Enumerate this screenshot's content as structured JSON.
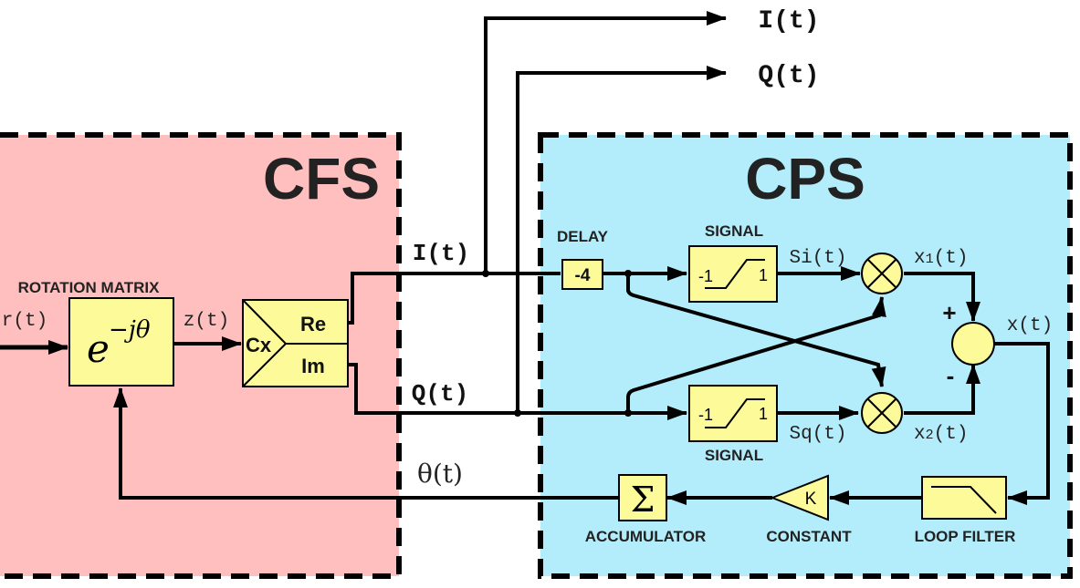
{
  "colors": {
    "cfs_fill": "#ffbfbf",
    "cps_fill": "#b3ecfa",
    "block_fill": "#fdfa9a",
    "line": "#000000"
  },
  "regions": {
    "cfs_title": "CFS",
    "cps_title": "CPS"
  },
  "outputs": {
    "i_label": "I(t)",
    "q_label": "Q(t)"
  },
  "signals": {
    "input": "r(t)",
    "z": "z(t)",
    "i_mid": "I(t)",
    "q_mid": "Q(t)",
    "si": "Si(t)",
    "sq": "Sq(t)",
    "x1_base": "x",
    "x1_sub": "1",
    "x1_tail": "(t)",
    "x2_base": "x",
    "x2_sub": "2",
    "x2_tail": "(t)",
    "x": "x(t)",
    "theta": "θ(t)",
    "plus": "+",
    "minus": "-"
  },
  "blocks": {
    "rotation_title": "ROTATION MATRIX",
    "rotation_base": "e",
    "rotation_exp": "−jθ",
    "cx_label": "Cx",
    "re_label": "Re",
    "im_label": "Im",
    "delay_title": "DELAY",
    "delay_value": "-4",
    "signal_top_title": "SIGNAL",
    "signal_bottom_title": "SIGNAL",
    "signal_low": "-1",
    "signal_high": "1",
    "accumulator_symbol": "Σ",
    "accumulator_title": "ACCUMULATOR",
    "constant_symbol": "K",
    "constant_title": "CONSTANT",
    "loop_filter_title": "LOOP FILTER"
  }
}
